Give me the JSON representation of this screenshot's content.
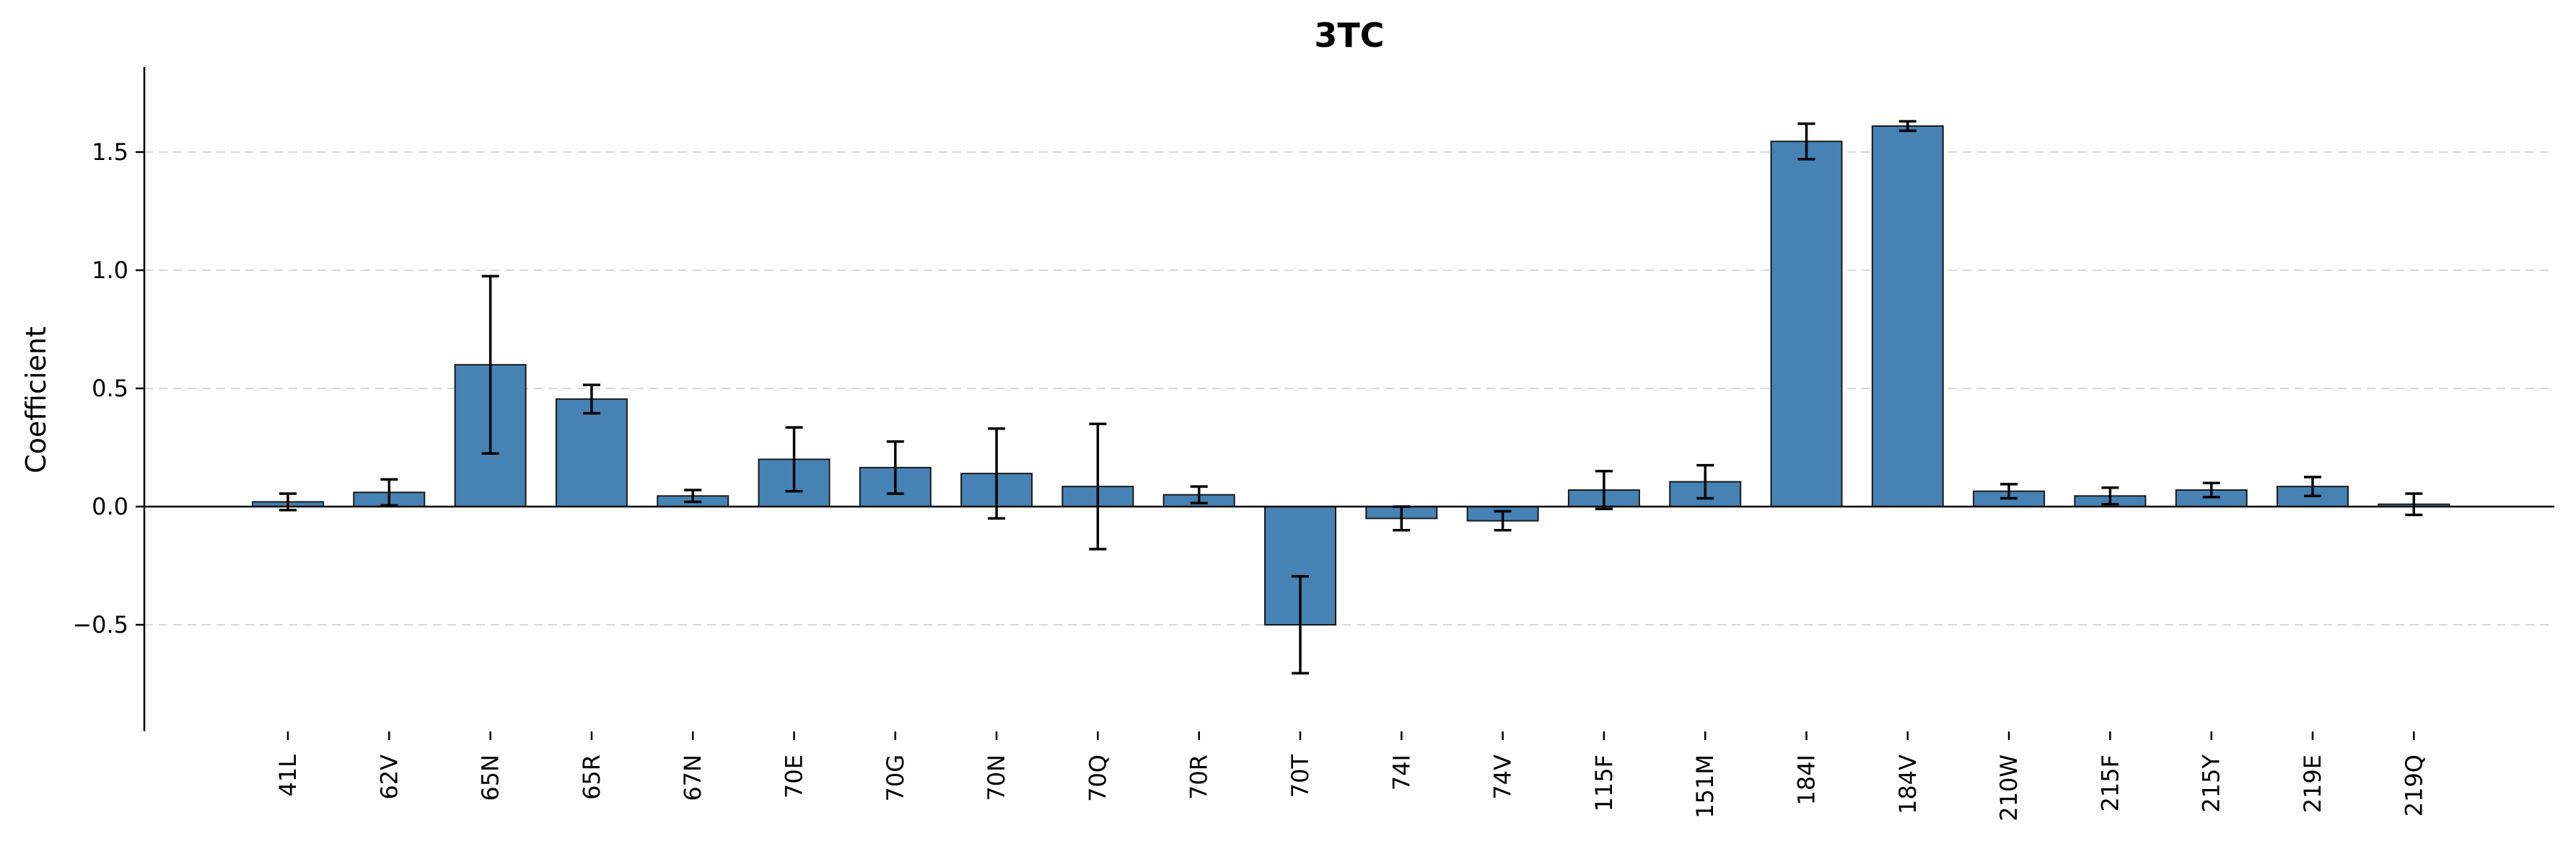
{
  "chart_data": {
    "type": "bar",
    "title": "3TC",
    "xlabel": "",
    "ylabel": "Coefficient",
    "categories": [
      "41L",
      "62V",
      "65N",
      "65R",
      "67N",
      "70E",
      "70G",
      "70N",
      "70Q",
      "70R",
      "70T",
      "74I",
      "74V",
      "115F",
      "151M",
      "184I",
      "184V",
      "210W",
      "215F",
      "215Y",
      "219E",
      "219Q"
    ],
    "values": [
      0.02,
      0.06,
      0.6,
      0.455,
      0.045,
      0.2,
      0.165,
      0.14,
      0.085,
      0.05,
      -0.5,
      -0.05,
      -0.06,
      0.07,
      0.105,
      1.545,
      1.61,
      0.065,
      0.045,
      0.07,
      0.085,
      0.01
    ],
    "errors": [
      0.035,
      0.055,
      0.375,
      0.06,
      0.025,
      0.135,
      0.11,
      0.19,
      0.265,
      0.035,
      0.205,
      0.05,
      0.04,
      0.08,
      0.07,
      0.075,
      0.02,
      0.03,
      0.035,
      0.03,
      0.04,
      0.045
    ],
    "ylim": [
      -0.95,
      1.86
    ],
    "yticks": [
      -0.5,
      0.0,
      0.5,
      1.0,
      1.5
    ],
    "ytick_labels": [
      "−0.5",
      "0.0",
      "0.5",
      "1.0",
      "1.5"
    ],
    "grid": "horizontal dashed",
    "legend": "none",
    "bar_color": "#4682b4",
    "edge_color": "#1a1a1a"
  }
}
